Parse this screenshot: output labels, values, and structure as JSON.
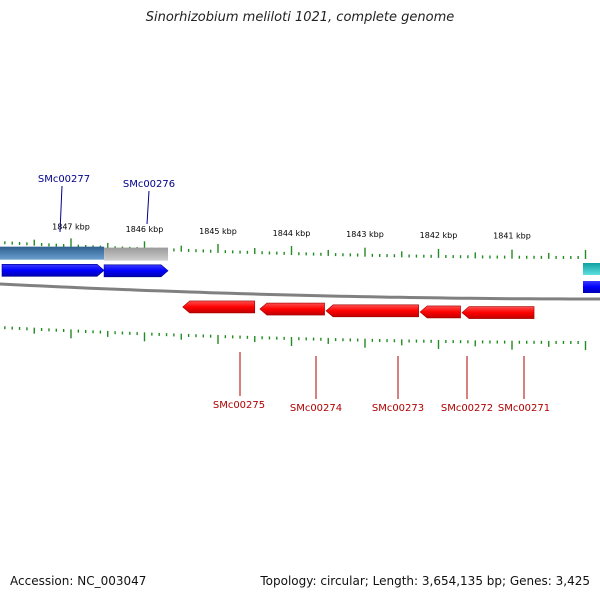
{
  "title": "Sinorhizobium meliloti 1021, complete genome",
  "accession_text": "Accession: NC_003047",
  "summary_text": "Topology: circular; Length: 3,654,135 bp; Genes: 3,425",
  "colors": {
    "forward_gene": "#0000ff",
    "reverse_gene": "#ff0000",
    "tick": "#228b22",
    "backbone": "#808080",
    "forward_label": "#00008b",
    "reverse_label": "#b00000",
    "highlight_blue": "#4682b4",
    "highlight_gray": "#b0b0b0",
    "edge_cyan": "#20c0c0"
  },
  "axis": {
    "unit": "kbp",
    "direction": "decreasing-left-to-right",
    "major_ticks_kbp": [
      1847,
      1846,
      1845,
      1844,
      1843,
      1842,
      1841
    ],
    "tick_labels": [
      "1847 kbp",
      "1846 kbp",
      "1845 kbp",
      "1844 kbp",
      "1843 kbp",
      "1842 kbp",
      "1841 kbp"
    ]
  },
  "genes": [
    {
      "name": "SMc00277",
      "strand": "forward",
      "start_kbp": 1848.05,
      "end_kbp": 1846.55,
      "highlight": "blue"
    },
    {
      "name": "SMc00276",
      "strand": "forward",
      "start_kbp": 1846.55,
      "end_kbp": 1845.68,
      "highlight": "gray"
    },
    {
      "name": "SMc00275",
      "strand": "reverse",
      "start_kbp": 1845.48,
      "end_kbp": 1844.5
    },
    {
      "name": "SMc00274",
      "strand": "reverse",
      "start_kbp": 1844.43,
      "end_kbp": 1843.55
    },
    {
      "name": "SMc00273",
      "strand": "reverse",
      "start_kbp": 1843.53,
      "end_kbp": 1842.27
    },
    {
      "name": "SMc00272",
      "strand": "reverse",
      "start_kbp": 1842.25,
      "end_kbp": 1841.7
    },
    {
      "name": "SMc00271",
      "strand": "reverse",
      "start_kbp": 1841.68,
      "end_kbp": 1840.7
    }
  ]
}
